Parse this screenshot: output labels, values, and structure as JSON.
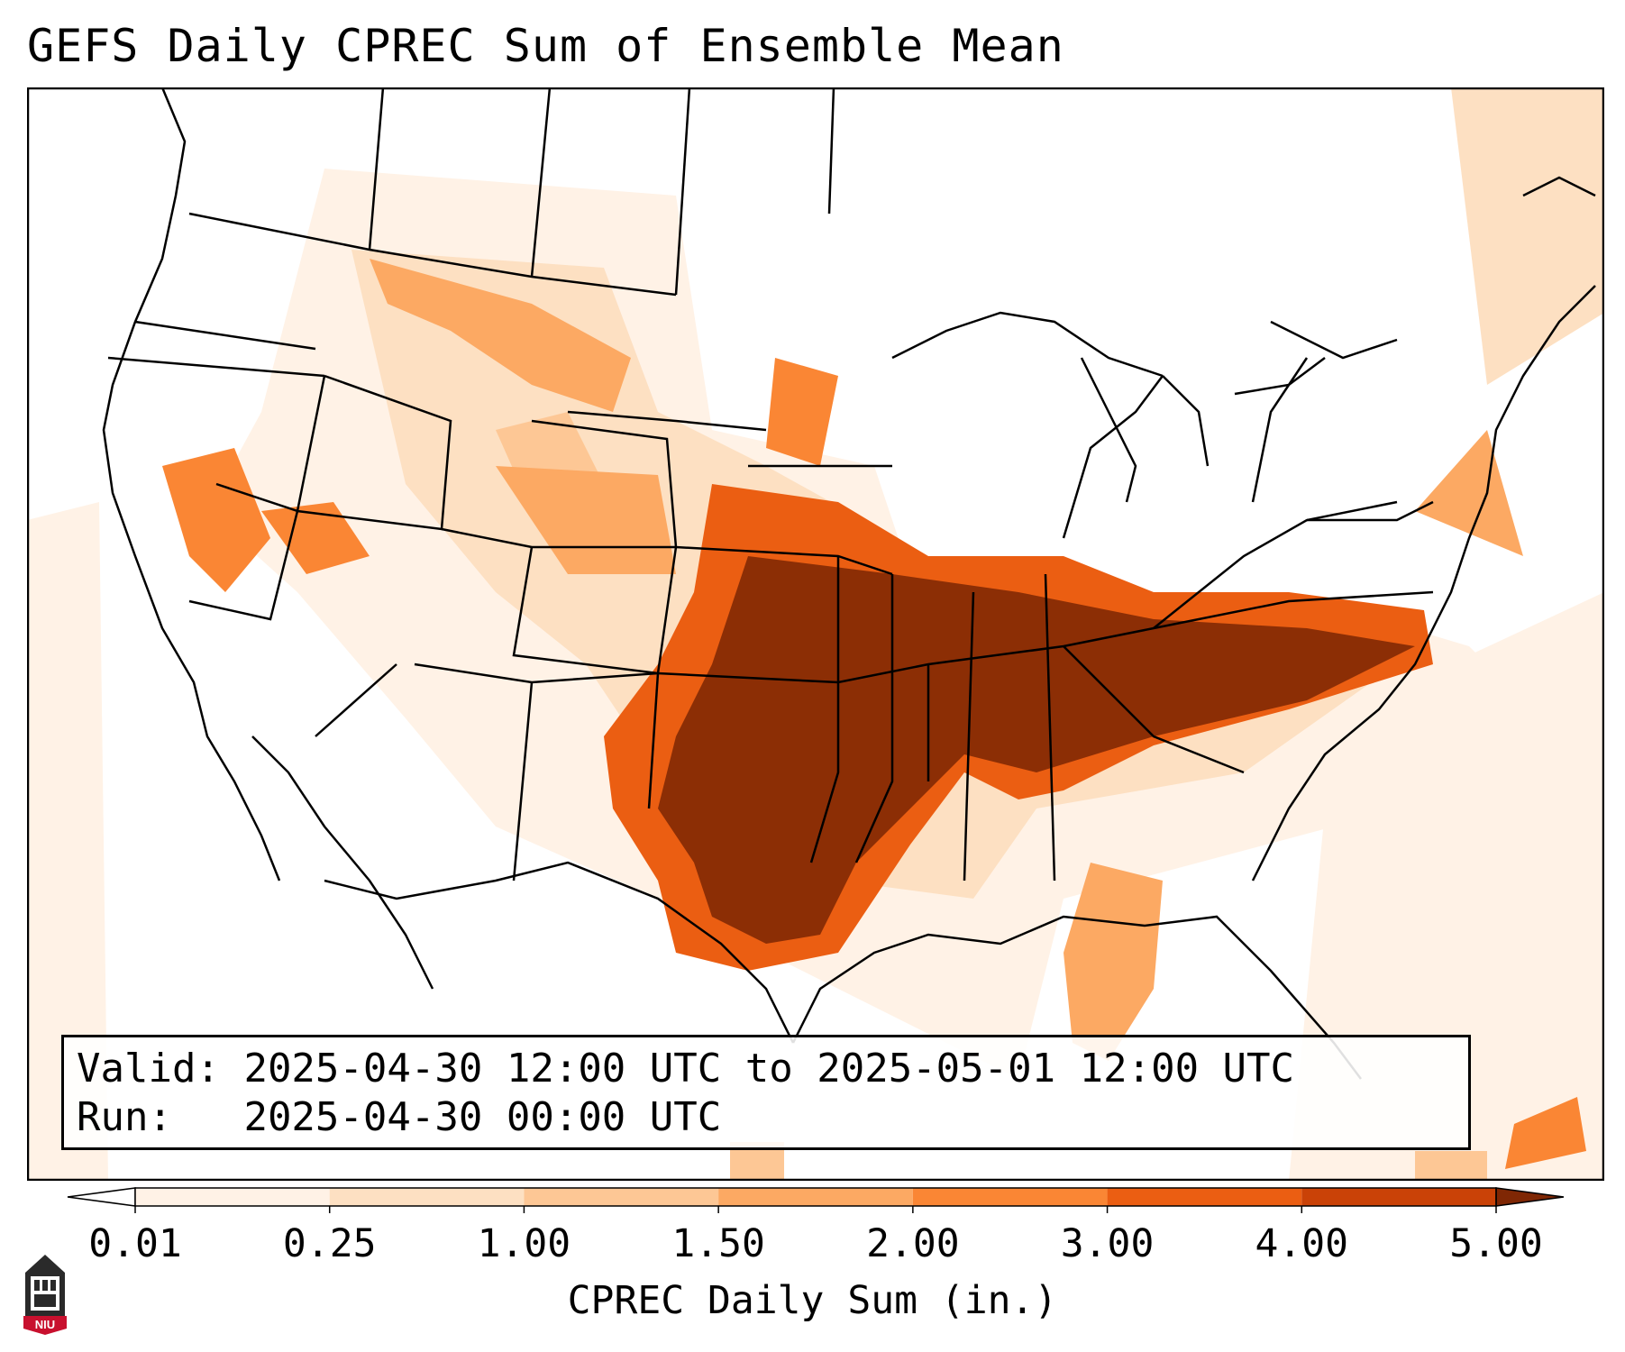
{
  "title": "GEFS Daily CPREC Sum of Ensemble Mean",
  "info": {
    "valid_label": "Valid:",
    "valid_text": "2025-04-30 12:00 UTC to 2025-05-01 12:00 UTC",
    "run_label": "Run:",
    "run_text": "2025-04-30 00:00 UTC"
  },
  "colorbar": {
    "label": "CPREC Daily Sum (in.)",
    "ticks": [
      "0.01",
      "0.25",
      "1.00",
      "1.50",
      "2.00",
      "3.00",
      "4.00",
      "5.00"
    ],
    "colors": [
      "#fff2e6",
      "#fde0c2",
      "#fdc795",
      "#fca963",
      "#fa8634",
      "#eb5e12",
      "#ca4207",
      "#8c2e05"
    ],
    "under_color": "#ffffff",
    "over_color": "#7f2704"
  },
  "logo": {
    "text": "NIU"
  }
}
